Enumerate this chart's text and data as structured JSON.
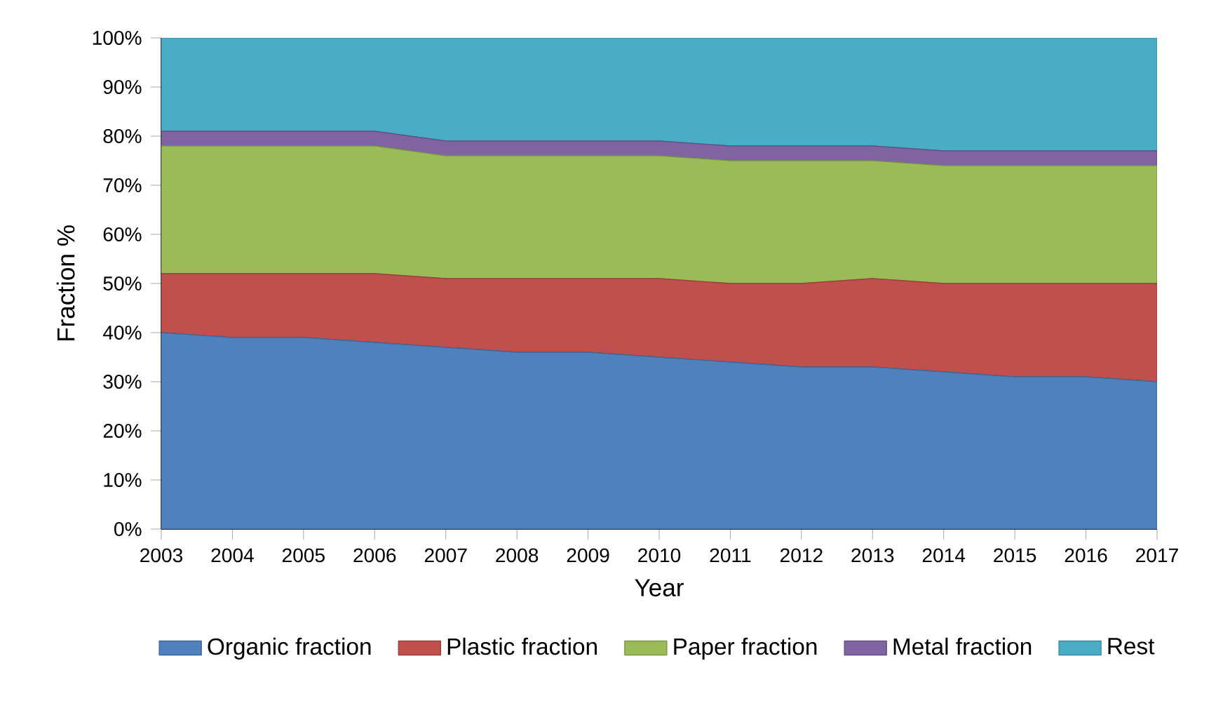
{
  "chart_data": {
    "type": "area",
    "stacked": true,
    "xlabel": "Year",
    "ylabel": "Fraction %",
    "categories": [
      "2003",
      "2004",
      "2005",
      "2006",
      "2007",
      "2008",
      "2009",
      "2010",
      "2011",
      "2012",
      "2013",
      "2014",
      "2015",
      "2016",
      "2017"
    ],
    "ylim": [
      0,
      100
    ],
    "yticks": [
      {
        "value": 0,
        "label": "0%"
      },
      {
        "value": 10,
        "label": "10%"
      },
      {
        "value": 20,
        "label": "20%"
      },
      {
        "value": 30,
        "label": "30%"
      },
      {
        "value": 40,
        "label": "40%"
      },
      {
        "value": 50,
        "label": "50%"
      },
      {
        "value": 60,
        "label": "60%"
      },
      {
        "value": 70,
        "label": "70%"
      },
      {
        "value": 80,
        "label": "80%"
      },
      {
        "value": 90,
        "label": "90%"
      },
      {
        "value": 100,
        "label": "100%"
      }
    ],
    "legend": "bottom",
    "grid": false,
    "series": [
      {
        "name": "Organic fraction",
        "color": "#4f81bd",
        "values": [
          40,
          39,
          39,
          38,
          37,
          36,
          36,
          35,
          34,
          33,
          33,
          32,
          31,
          31,
          30
        ]
      },
      {
        "name": "Plastic fraction",
        "color": "#c0504d",
        "values": [
          12,
          13,
          13,
          14,
          14,
          15,
          15,
          16,
          16,
          17,
          18,
          18,
          19,
          19,
          20
        ]
      },
      {
        "name": "Paper fraction",
        "color": "#9bbb59",
        "values": [
          26,
          26,
          26,
          26,
          25,
          25,
          25,
          25,
          25,
          25,
          24,
          24,
          24,
          24,
          24
        ]
      },
      {
        "name": "Metal fraction",
        "color": "#8064a2",
        "values": [
          3,
          3,
          3,
          3,
          3,
          3,
          3,
          3,
          3,
          3,
          3,
          3,
          3,
          3,
          3
        ]
      },
      {
        "name": "Rest",
        "color": "#4bacc6",
        "values": [
          19,
          19,
          19,
          19,
          21,
          21,
          21,
          21,
          22,
          22,
          22,
          23,
          23,
          23,
          23
        ]
      }
    ]
  }
}
